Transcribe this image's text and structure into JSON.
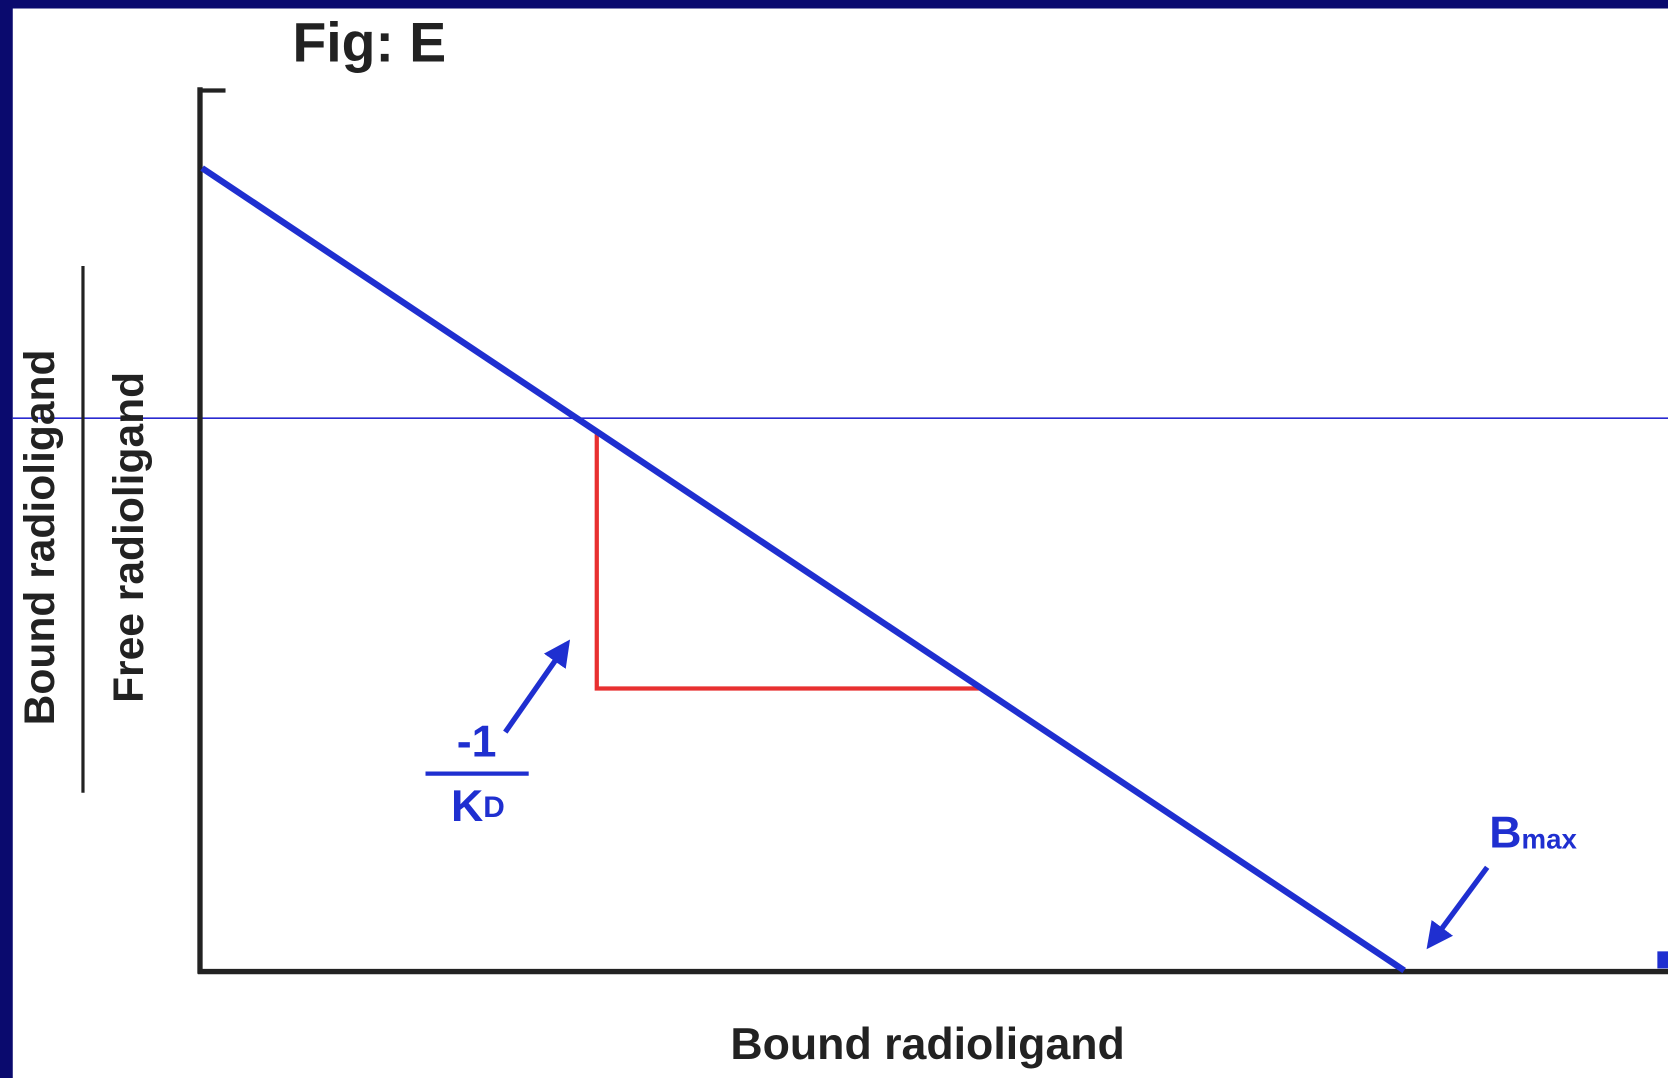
{
  "title": "Fig: E",
  "y_axis": {
    "numerator": "Bound radioligand",
    "denominator": "Free radioligand"
  },
  "x_axis": {
    "label": "Bound radioligand"
  },
  "annotations": {
    "slope": {
      "numerator": "-1",
      "denominator_main": "K",
      "denominator_sub": "D"
    },
    "intercept": {
      "main": "B",
      "sub": "max"
    }
  }
}
